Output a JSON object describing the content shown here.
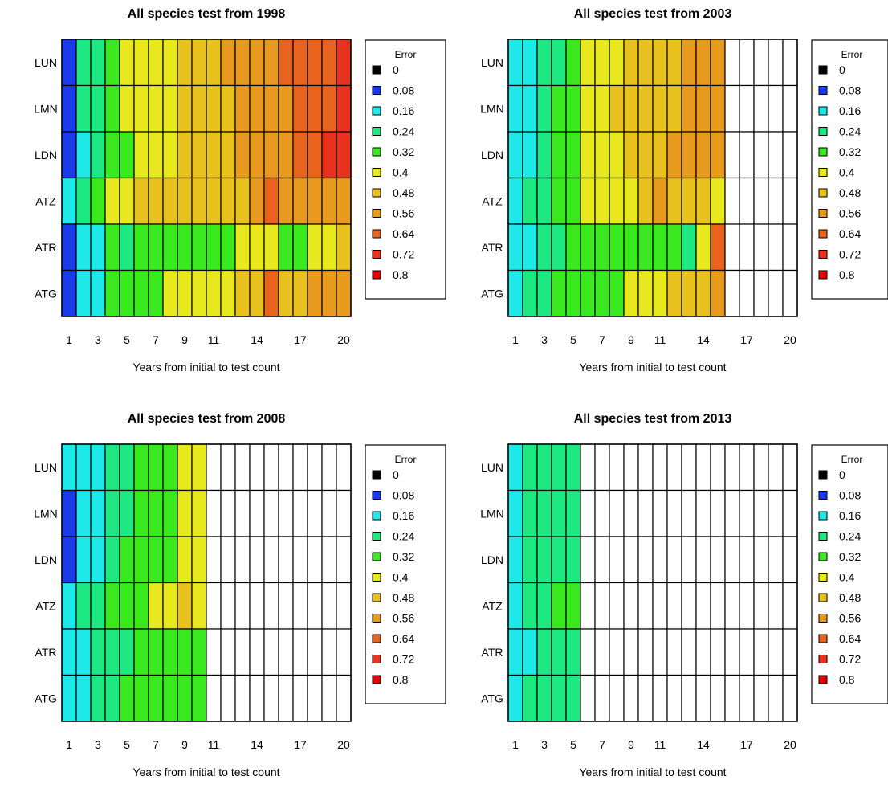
{
  "palette": [
    "#000000",
    "#1a3be8",
    "#1fe8e8",
    "#1ee882",
    "#39e81e",
    "#e8e81e",
    "#e8c11e",
    "#e89a1e",
    "#e8641e",
    "#e8321e",
    "#e80000"
  ],
  "chart_data": [
    {
      "type": "heatmap",
      "title": "All species test from 1998",
      "xlabel": "Years from initial to test count",
      "rows": [
        "LUN",
        "LMN",
        "LDN",
        "ATZ",
        "ATR",
        "ATG"
      ],
      "x_ticks": [
        1,
        3,
        5,
        7,
        9,
        11,
        14,
        17,
        20
      ],
      "legend_title": "Error",
      "legend_values": [
        "0",
        "0.08",
        "0.16",
        "0.24",
        "0.32",
        "0.4",
        "0.48",
        "0.56",
        "0.64",
        "0.72",
        "0.8"
      ],
      "legend_placement": "right",
      "values": [
        [
          0.09,
          0.2,
          0.22,
          0.34,
          0.36,
          0.38,
          0.4,
          0.42,
          0.45,
          0.47,
          0.5,
          0.52,
          0.53,
          0.55,
          0.57,
          0.6,
          0.62,
          0.65,
          0.67,
          0.7
        ],
        [
          0.09,
          0.22,
          0.24,
          0.34,
          0.36,
          0.38,
          0.4,
          0.41,
          0.45,
          0.46,
          0.48,
          0.5,
          0.52,
          0.55,
          0.56,
          0.58,
          0.6,
          0.62,
          0.65,
          0.68
        ],
        [
          0.09,
          0.17,
          0.22,
          0.33,
          0.35,
          0.37,
          0.39,
          0.4,
          0.44,
          0.46,
          0.48,
          0.5,
          0.52,
          0.55,
          0.56,
          0.58,
          0.62,
          0.64,
          0.69,
          0.7
        ],
        [
          0.17,
          0.27,
          0.31,
          0.42,
          0.43,
          0.44,
          0.44,
          0.45,
          0.45,
          0.46,
          0.47,
          0.48,
          0.5,
          0.52,
          0.62,
          0.57,
          0.56,
          0.55,
          0.52,
          0.58
        ],
        [
          0.1,
          0.19,
          0.19,
          0.28,
          0.27,
          0.29,
          0.29,
          0.28,
          0.29,
          0.3,
          0.32,
          0.33,
          0.36,
          0.38,
          0.43,
          0.35,
          0.3,
          0.37,
          0.43,
          0.45
        ],
        [
          0.07,
          0.16,
          0.18,
          0.34,
          0.33,
          0.35,
          0.34,
          0.36,
          0.37,
          0.39,
          0.4,
          0.42,
          0.45,
          0.47,
          0.62,
          0.49,
          0.51,
          0.52,
          0.55,
          0.56
        ]
      ]
    },
    {
      "type": "heatmap",
      "title": "All species test from 2003",
      "xlabel": "Years from initial to test count",
      "rows": [
        "LUN",
        "LMN",
        "LDN",
        "ATZ",
        "ATR",
        "ATG"
      ],
      "x_ticks": [
        1,
        3,
        5,
        7,
        9,
        11,
        14,
        17,
        20
      ],
      "legend_title": "Error",
      "legend_values": [
        "0",
        "0.08",
        "0.16",
        "0.24",
        "0.32",
        "0.4",
        "0.48",
        "0.56",
        "0.64",
        "0.72",
        "0.8"
      ],
      "legend_placement": "right",
      "values": [
        [
          0.12,
          0.18,
          0.24,
          0.27,
          0.32,
          0.37,
          0.4,
          0.43,
          0.45,
          0.46,
          0.48,
          0.5,
          0.54,
          0.55,
          0.57,
          null,
          null,
          null,
          null,
          null
        ],
        [
          0.12,
          0.19,
          0.25,
          0.28,
          0.33,
          0.37,
          0.4,
          0.44,
          0.45,
          0.47,
          0.48,
          0.5,
          0.52,
          0.54,
          0.56,
          null,
          null,
          null,
          null,
          null
        ],
        [
          0.12,
          0.19,
          0.25,
          0.29,
          0.34,
          0.38,
          0.41,
          0.43,
          0.46,
          0.48,
          0.5,
          0.52,
          0.54,
          0.55,
          0.56,
          null,
          null,
          null,
          null,
          null
        ],
        [
          0.15,
          0.2,
          0.27,
          0.29,
          0.33,
          0.36,
          0.38,
          0.4,
          0.42,
          0.5,
          0.52,
          0.51,
          0.5,
          0.45,
          0.41,
          null,
          null,
          null,
          null,
          null
        ],
        [
          0.12,
          0.17,
          0.21,
          0.25,
          0.28,
          0.3,
          0.31,
          0.31,
          0.31,
          0.32,
          0.33,
          0.35,
          0.27,
          0.37,
          0.61,
          null,
          null,
          null,
          null,
          null
        ],
        [
          0.12,
          0.23,
          0.25,
          0.28,
          0.29,
          0.3,
          0.32,
          0.35,
          0.37,
          0.38,
          0.41,
          0.44,
          0.45,
          0.47,
          0.54,
          null,
          null,
          null,
          null,
          null
        ]
      ]
    },
    {
      "type": "heatmap",
      "title": "All species test from 2008",
      "xlabel": "Years from initial to test count",
      "rows": [
        "LUN",
        "LMN",
        "LDN",
        "ATZ",
        "ATR",
        "ATG"
      ],
      "x_ticks": [
        1,
        3,
        5,
        7,
        9,
        11,
        14,
        17,
        20
      ],
      "legend_title": "Error",
      "legend_values": [
        "0",
        "0.08",
        "0.16",
        "0.24",
        "0.32",
        "0.4",
        "0.48",
        "0.56",
        "0.64",
        "0.72",
        "0.8"
      ],
      "legend_placement": "right",
      "values": [
        [
          0.12,
          0.14,
          0.19,
          0.24,
          0.27,
          0.28,
          0.29,
          0.32,
          0.38,
          0.39,
          null,
          null,
          null,
          null,
          null,
          null,
          null,
          null,
          null,
          null
        ],
        [
          0.11,
          0.12,
          0.19,
          0.25,
          0.27,
          0.29,
          0.3,
          0.33,
          0.37,
          0.39,
          null,
          null,
          null,
          null,
          null,
          null,
          null,
          null,
          null,
          null
        ],
        [
          0.11,
          0.12,
          0.18,
          0.24,
          0.28,
          0.29,
          0.31,
          0.33,
          0.36,
          0.38,
          null,
          null,
          null,
          null,
          null,
          null,
          null,
          null,
          null,
          null
        ],
        [
          0.17,
          0.22,
          0.26,
          0.34,
          0.33,
          0.35,
          0.36,
          0.37,
          0.44,
          0.4,
          null,
          null,
          null,
          null,
          null,
          null,
          null,
          null,
          null,
          null
        ],
        [
          0.13,
          0.15,
          0.2,
          0.25,
          0.27,
          0.29,
          0.29,
          0.3,
          0.32,
          0.35,
          null,
          null,
          null,
          null,
          null,
          null,
          null,
          null,
          null,
          null
        ],
        [
          0.13,
          0.15,
          0.2,
          0.26,
          0.29,
          0.3,
          0.29,
          0.3,
          0.31,
          0.33,
          null,
          null,
          null,
          null,
          null,
          null,
          null,
          null,
          null,
          null
        ]
      ]
    },
    {
      "type": "heatmap",
      "title": "All species test from 2013",
      "xlabel": "Years from initial to test count",
      "rows": [
        "LUN",
        "LMN",
        "LDN",
        "ATZ",
        "ATR",
        "ATG"
      ],
      "x_ticks": [
        1,
        3,
        5,
        7,
        9,
        11,
        14,
        17,
        20
      ],
      "legend_title": "Error",
      "legend_values": [
        "0",
        "0.08",
        "0.16",
        "0.24",
        "0.32",
        "0.4",
        "0.48",
        "0.56",
        "0.64",
        "0.72",
        "0.8"
      ],
      "legend_placement": "right",
      "values": [
        [
          0.13,
          0.2,
          0.24,
          0.24,
          0.25,
          null,
          null,
          null,
          null,
          null,
          null,
          null,
          null,
          null,
          null,
          null,
          null,
          null,
          null,
          null
        ],
        [
          0.12,
          0.2,
          0.24,
          0.24,
          0.25,
          null,
          null,
          null,
          null,
          null,
          null,
          null,
          null,
          null,
          null,
          null,
          null,
          null,
          null,
          null
        ],
        [
          0.12,
          0.2,
          0.24,
          0.25,
          0.26,
          null,
          null,
          null,
          null,
          null,
          null,
          null,
          null,
          null,
          null,
          null,
          null,
          null,
          null,
          null
        ],
        [
          0.14,
          0.21,
          0.27,
          0.3,
          0.31,
          null,
          null,
          null,
          null,
          null,
          null,
          null,
          null,
          null,
          null,
          null,
          null,
          null,
          null,
          null
        ],
        [
          0.13,
          0.17,
          0.22,
          0.23,
          0.24,
          null,
          null,
          null,
          null,
          null,
          null,
          null,
          null,
          null,
          null,
          null,
          null,
          null,
          null,
          null
        ],
        [
          0.13,
          0.2,
          0.22,
          0.23,
          0.23,
          null,
          null,
          null,
          null,
          null,
          null,
          null,
          null,
          null,
          null,
          null,
          null,
          null,
          null,
          null
        ]
      ]
    }
  ]
}
